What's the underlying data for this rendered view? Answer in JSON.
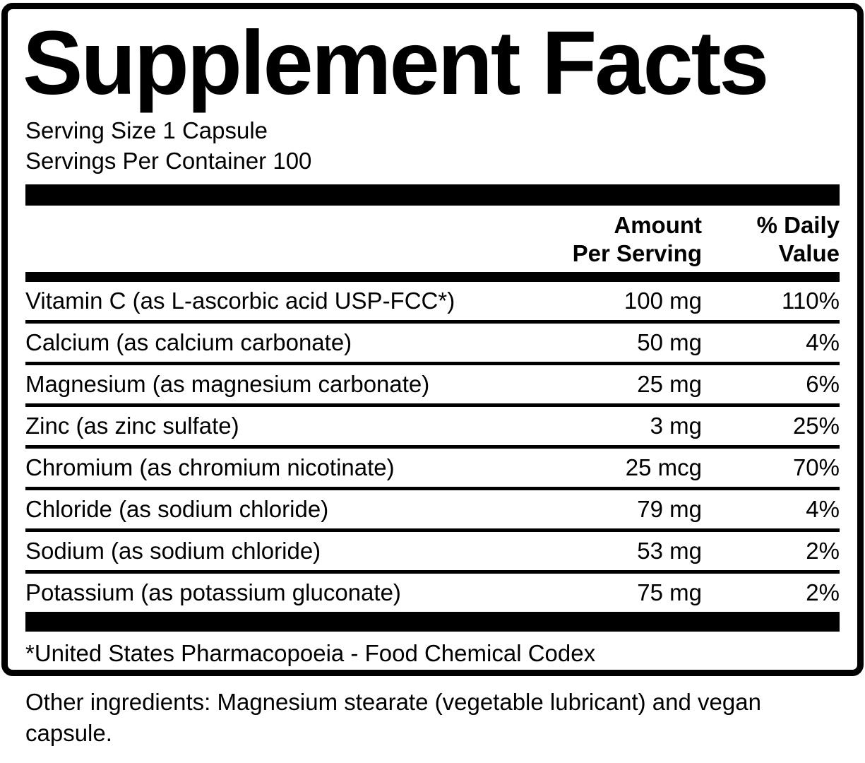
{
  "label": {
    "title": "Supplement Facts",
    "serving_size": "Serving Size 1 Capsule",
    "servings_per_container": "Servings Per Container 100",
    "columns": {
      "amount_header": "Amount\nPer Serving",
      "dv_header": "% Daily\nValue"
    },
    "rows": [
      {
        "name": "Vitamin C (as L-ascorbic acid USP-FCC*)",
        "amount": "100 mg",
        "dv": "110%"
      },
      {
        "name": "Calcium (as calcium carbonate)",
        "amount": "50 mg",
        "dv": "4%"
      },
      {
        "name": "Magnesium (as magnesium carbonate)",
        "amount": "25 mg",
        "dv": "6%"
      },
      {
        "name": "Zinc (as zinc sulfate)",
        "amount": "3 mg",
        "dv": "25%"
      },
      {
        "name": "Chromium (as chromium nicotinate)",
        "amount": "25 mcg",
        "dv": "70%"
      },
      {
        "name": "Chloride (as sodium chloride)",
        "amount": "79 mg",
        "dv": "4%"
      },
      {
        "name": "Sodium (as sodium chloride)",
        "amount": "53 mg",
        "dv": "2%"
      },
      {
        "name": "Potassium (as potassium gluconate)",
        "amount": "75 mg",
        "dv": "2%"
      }
    ],
    "footnote": "*United States Pharmacopoeia - Food Chemical Codex",
    "other_ingredients": "Other ingredients: Magnesium stearate (vegetable lubricant) and vegan capsule."
  },
  "colors": {
    "ink": "#000000",
    "background": "#ffffff"
  }
}
